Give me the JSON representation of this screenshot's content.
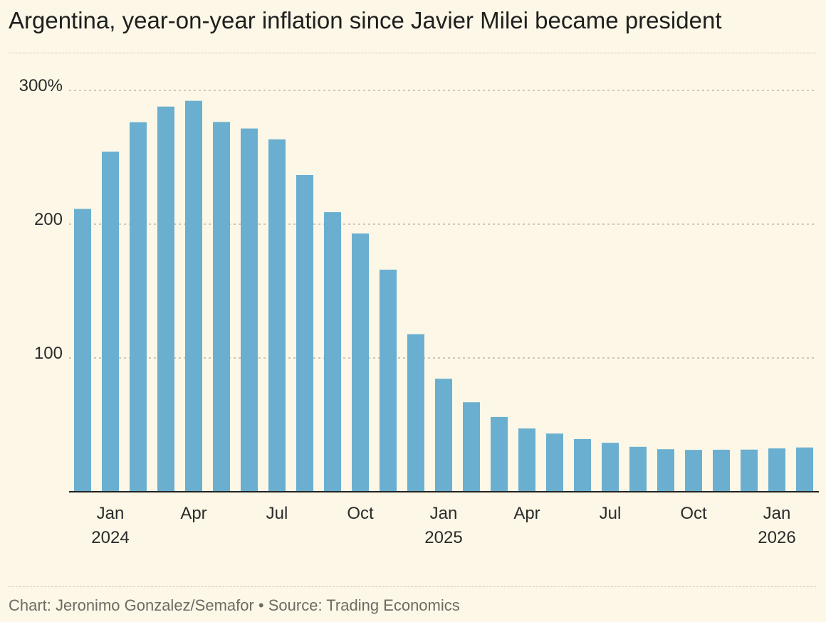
{
  "title": "Argentina, year-on-year inflation since Javier Milei became president",
  "footer": "Chart: Jeronimo Gonzalez/Semafor • Source: Trading Economics",
  "colors": {
    "bar": "#6aafcf",
    "background": "#fcf7e6",
    "grid": "#b3ada4",
    "axis": "#222222"
  },
  "chart_data": {
    "type": "bar",
    "title": "Argentina, year-on-year inflation since Javier Milei became president",
    "xlabel": "",
    "ylabel": "",
    "ylim": [
      0,
      300
    ],
    "yticks": [
      {
        "value": 300,
        "label": "300%"
      },
      {
        "value": 200,
        "label": "200"
      },
      {
        "value": 100,
        "label": "100"
      }
    ],
    "grid": true,
    "categories": [
      "Dec 2023",
      "Jan 2024",
      "Feb 2024",
      "Mar 2024",
      "Apr 2024",
      "May 2024",
      "Jun 2024",
      "Jul 2024",
      "Aug 2024",
      "Sep 2024",
      "Oct 2024",
      "Nov 2024",
      "Dec 2024",
      "Jan 2025",
      "Feb 2025",
      "Mar 2025",
      "Apr 2025",
      "May 2025",
      "Jun 2025",
      "Jul 2025",
      "Aug 2025",
      "Sep 2025",
      "Oct 2025",
      "Nov 2025",
      "Dec 2025",
      "Jan 2026",
      "Feb 2026"
    ],
    "values": [
      211.4,
      254.2,
      276.2,
      287.9,
      292.2,
      276.4,
      271.5,
      263.4,
      236.7,
      209.0,
      193.0,
      166.0,
      117.8,
      84.5,
      66.9,
      55.9,
      47.3,
      43.5,
      39.4,
      36.6,
      33.6,
      31.8,
      31.3,
      31.4,
      31.5,
      32.4,
      33.1
    ],
    "xtick_labels": [
      {
        "index": 1,
        "month": "Jan",
        "year": "2024"
      },
      {
        "index": 4,
        "month": "Apr",
        "year": ""
      },
      {
        "index": 7,
        "month": "Jul",
        "year": ""
      },
      {
        "index": 10,
        "month": "Oct",
        "year": ""
      },
      {
        "index": 13,
        "month": "Jan",
        "year": "2025"
      },
      {
        "index": 16,
        "month": "Apr",
        "year": ""
      },
      {
        "index": 19,
        "month": "Jul",
        "year": ""
      },
      {
        "index": 22,
        "month": "Oct",
        "year": ""
      },
      {
        "index": 25,
        "month": "Jan",
        "year": "2026"
      }
    ]
  }
}
